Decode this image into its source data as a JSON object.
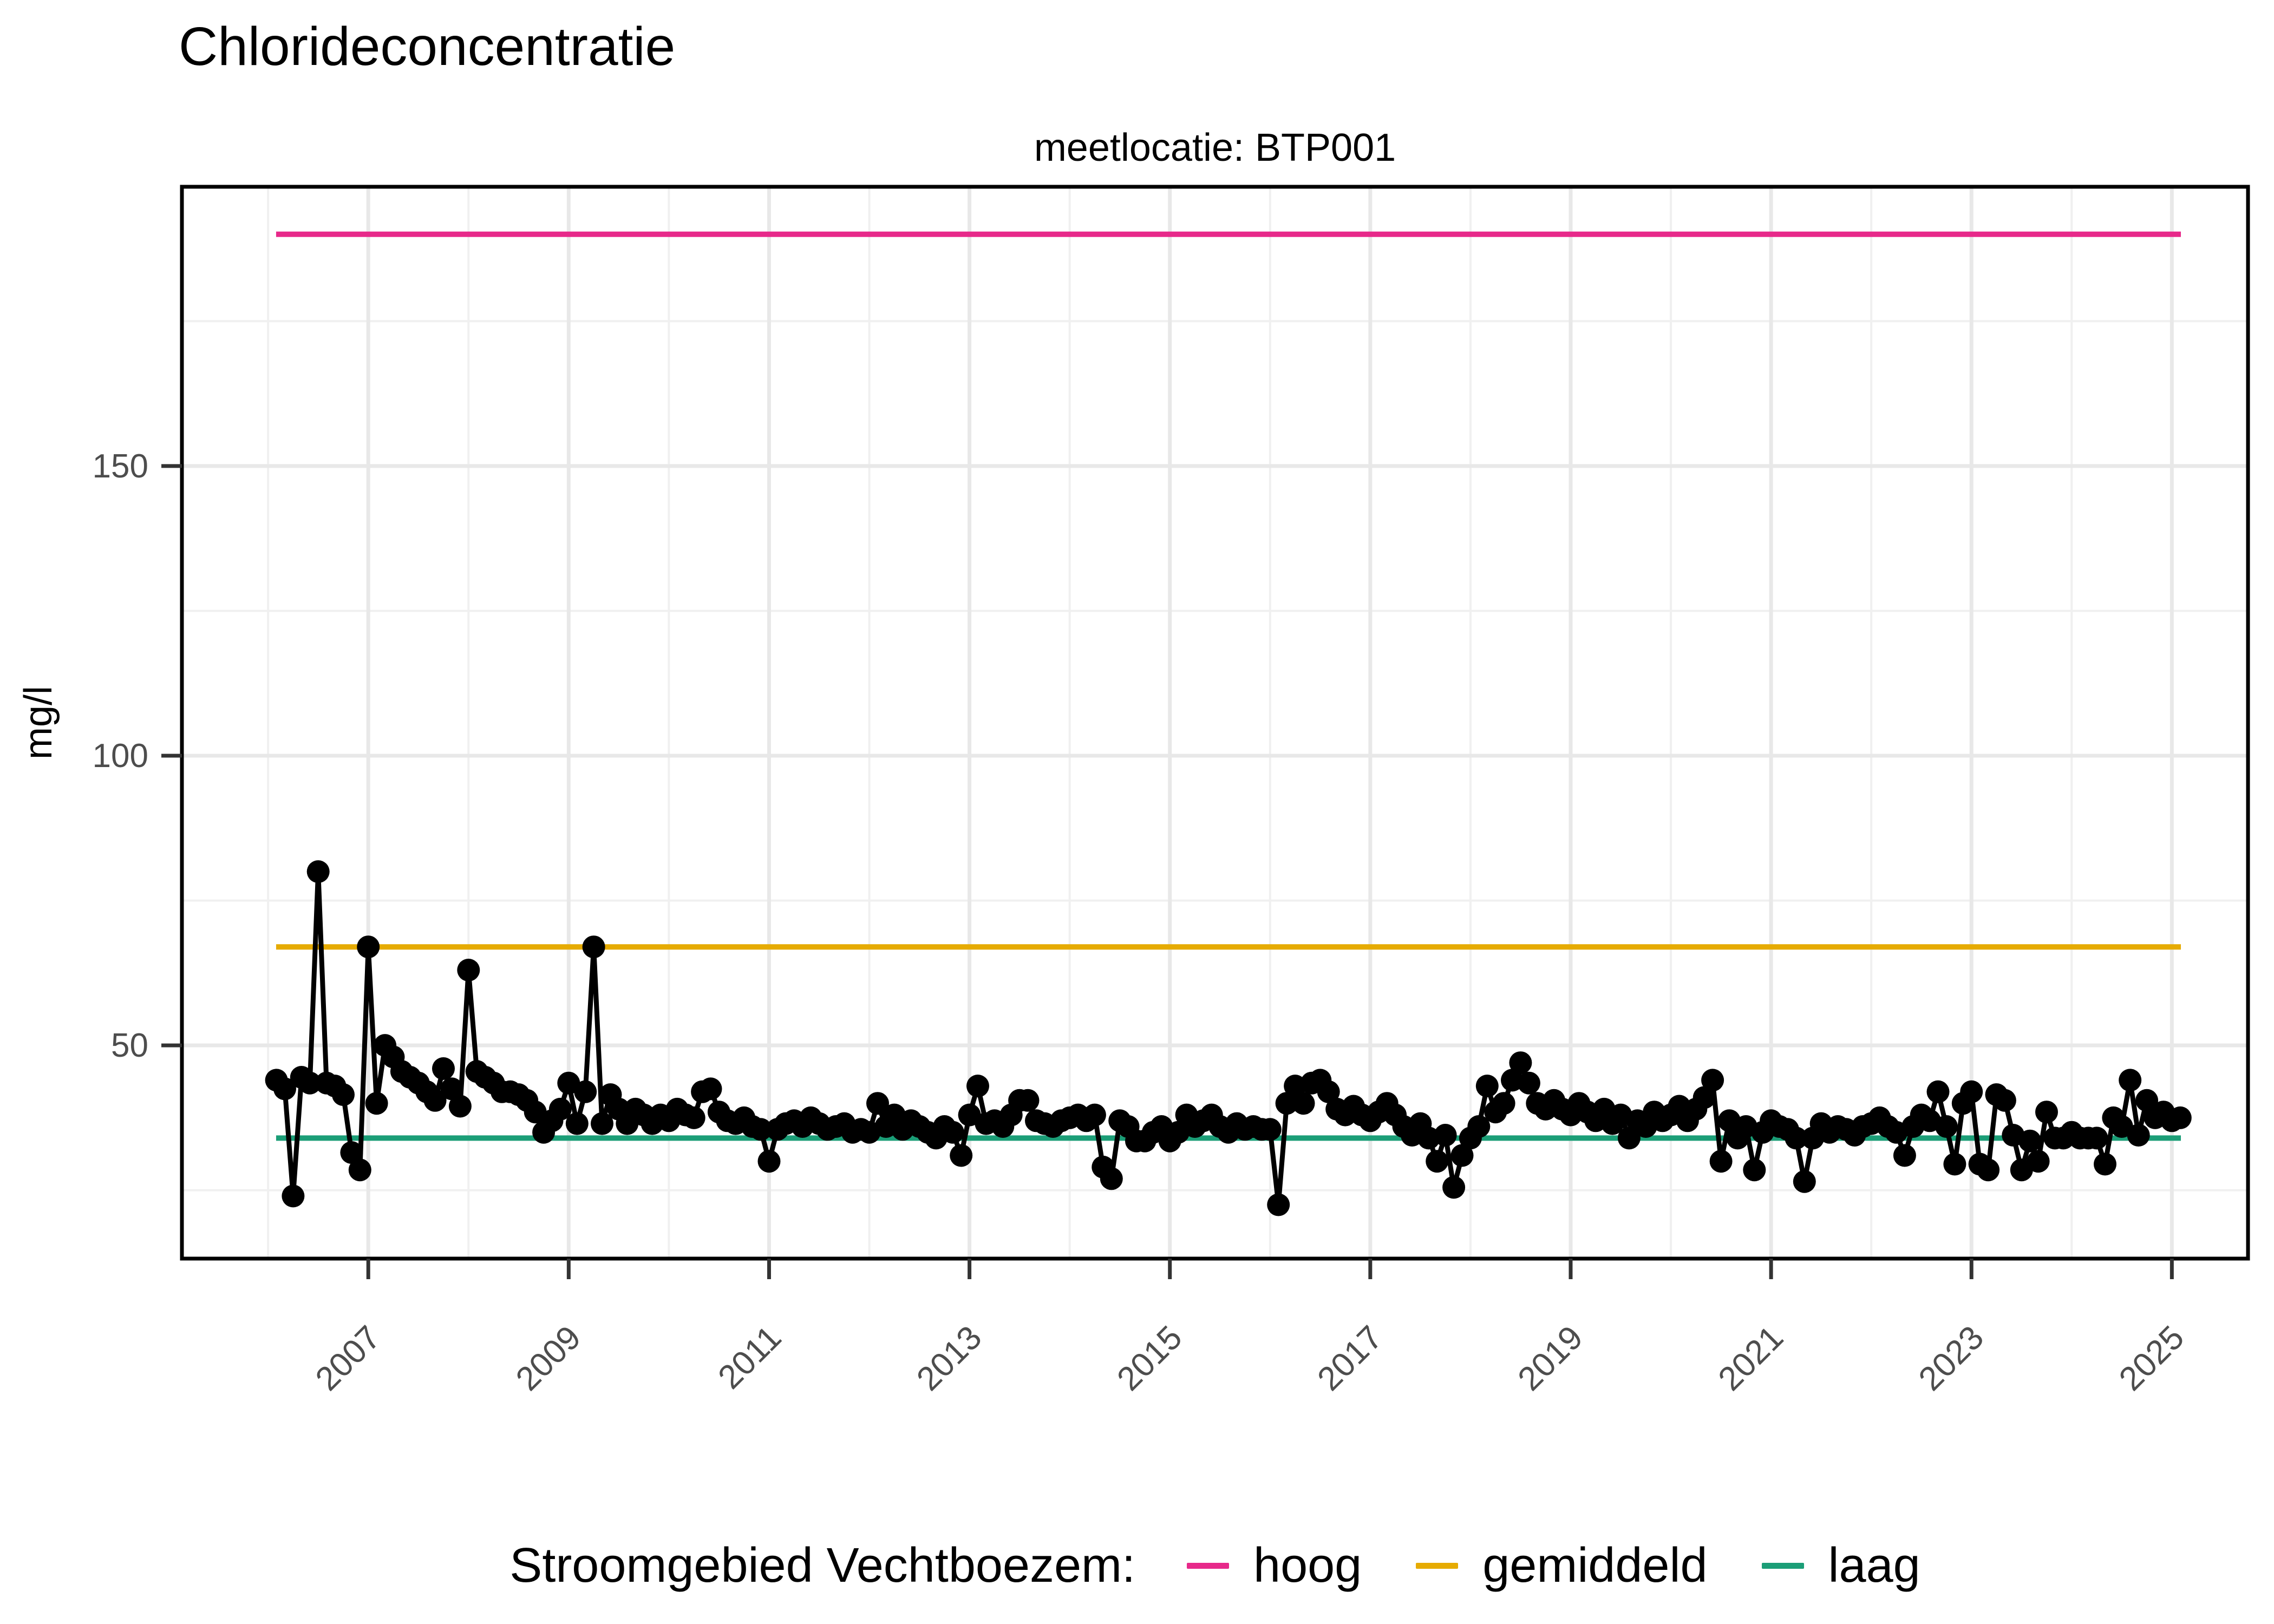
{
  "chart_data": {
    "type": "line",
    "title": "Chlorideconcentratie",
    "subtitle": "meetlocatie: BTP001",
    "ylabel": "mg/l",
    "xlabel": "",
    "x_tick_years": [
      2007,
      2009,
      2011,
      2013,
      2015,
      2017,
      2019,
      2021,
      2023,
      2025
    ],
    "x_tick_labels": [
      "2007",
      "2009",
      "2011",
      "2013",
      "2015",
      "2017",
      "2019",
      "2021",
      "2023",
      "2025"
    ],
    "x_minor_years": [
      2006,
      2008,
      2010,
      2012,
      2014,
      2016,
      2018,
      2020,
      2022,
      2024
    ],
    "y_ticks": [
      50,
      100,
      150
    ],
    "y_tick_labels": [
      "50",
      "100",
      "150"
    ],
    "y_minor": [
      25,
      75,
      125,
      175
    ],
    "xlim": [
      2005.14,
      2025.76
    ],
    "ylim": [
      13.2,
      198.2
    ],
    "grid": true,
    "legend_position": "bottom",
    "legend": {
      "title": "Stroomgebied Vechtboezem:",
      "items": [
        {
          "label": "hoog",
          "color": "#E7298A"
        },
        {
          "label": "gemiddeld",
          "color": "#E6AB02"
        },
        {
          "label": "laag",
          "color": "#1B9E77"
        }
      ]
    },
    "reference_lines": [
      {
        "name": "hoog",
        "value": 190,
        "color": "#E7298A",
        "x_start": 2006.08,
        "x_end": 2025.09
      },
      {
        "name": "gemiddeld",
        "value": 67,
        "color": "#E6AB02",
        "x_start": 2006.08,
        "x_end": 2025.09
      },
      {
        "name": "laag",
        "value": 34,
        "color": "#1B9E77",
        "x_start": 2006.08,
        "x_end": 2025.09
      }
    ],
    "series": [
      {
        "name": "chlorideconcentratie BTP001",
        "color": "#000000",
        "monthly": [
          {
            "year": 2006,
            "start_month": 2,
            "values": [
              44,
              42.5,
              24,
              44.5,
              43.5,
              80,
              43.5,
              43,
              41.5,
              31.5,
              28.5
            ]
          },
          {
            "year": 2007,
            "start_month": 1,
            "values": [
              67,
              40,
              50,
              48,
              45.5,
              44.5,
              43.5,
              42,
              40.5,
              46,
              42.5,
              39.5
            ]
          },
          {
            "year": 2008,
            "start_month": 1,
            "values": [
              63,
              45.5,
              44.5,
              43.5,
              42,
              42,
              41.5,
              40.5,
              38.5,
              35,
              37,
              39
            ]
          },
          {
            "year": 2009,
            "start_month": 1,
            "values": [
              43.5,
              36.5,
              42,
              67,
              36.5,
              41.5,
              39,
              36.5,
              39,
              38,
              36.5,
              38
            ]
          },
          {
            "year": 2010,
            "start_month": 1,
            "values": [
              37,
              39,
              38,
              37.5,
              42,
              42.5,
              38.5,
              37,
              36.5,
              37.5,
              36,
              35.5
            ]
          },
          {
            "year": 2011,
            "start_month": 1,
            "values": [
              30,
              35.5,
              36.5,
              37,
              36,
              37.5,
              36.5,
              35.5,
              36,
              36.5,
              35,
              35.5
            ]
          },
          {
            "year": 2012,
            "start_month": 1,
            "values": [
              35,
              40,
              36,
              38,
              35.5,
              37,
              36,
              35,
              34,
              36,
              35,
              31
            ]
          },
          {
            "year": 2013,
            "start_month": 1,
            "values": [
              38,
              43,
              36.5,
              37,
              36,
              38,
              40.5,
              40.5,
              37,
              36.5,
              36,
              37
            ]
          },
          {
            "year": 2014,
            "start_month": 1,
            "values": [
              37.5,
              38,
              37,
              38,
              29,
              27,
              37,
              36,
              33.5,
              33.5,
              35,
              36
            ]
          },
          {
            "year": 2015,
            "start_month": 1,
            "values": [
              33.5,
              35,
              38,
              36,
              37,
              38,
              36,
              35,
              36.5,
              35.5,
              36,
              35.5
            ]
          },
          {
            "year": 2016,
            "start_month": 1,
            "values": [
              35.5,
              22.5,
              40,
              43,
              40,
              43.5,
              44,
              42,
              39,
              38,
              39.5,
              38
            ]
          },
          {
            "year": 2017,
            "start_month": 1,
            "values": [
              37,
              38.5,
              40,
              38,
              36,
              34.5,
              36.5,
              34,
              30,
              34.5,
              25.5,
              31
            ]
          },
          {
            "year": 2018,
            "start_month": 1,
            "values": [
              34,
              36,
              43,
              38.5,
              40,
              44,
              47,
              43.5,
              40,
              39,
              40.5,
              39
            ]
          },
          {
            "year": 2019,
            "start_month": 1,
            "values": [
              38,
              40,
              38.5,
              37,
              39,
              36.5,
              38,
              34,
              37,
              36,
              38.5,
              37
            ]
          },
          {
            "year": 2020,
            "start_month": 1,
            "values": [
              38,
              39.5,
              37,
              39,
              41,
              44,
              30,
              37,
              34,
              36,
              28.5,
              35
            ]
          },
          {
            "year": 2021,
            "start_month": 1,
            "values": [
              37,
              36,
              35.5,
              34,
              26.5,
              34,
              36.5,
              35,
              36,
              35.5,
              34.5,
              36
            ]
          },
          {
            "year": 2022,
            "start_month": 1,
            "values": [
              36.5,
              37.5,
              36,
              35,
              31,
              36,
              38,
              37,
              42,
              36,
              29.5,
              40
            ]
          },
          {
            "year": 2023,
            "start_month": 1,
            "values": [
              42,
              29.5,
              28.5,
              41.5,
              40.5,
              34.5,
              28.5,
              33.5,
              30,
              38.5,
              34,
              34
            ]
          },
          {
            "year": 2024,
            "start_month": 1,
            "values": [
              35,
              34,
              34,
              34,
              29.5,
              37.5,
              36,
              44,
              34.5,
              40.5,
              37.5,
              38.5
            ]
          },
          {
            "year": 2025,
            "start_month": 1,
            "values": [
              37,
              37.5
            ]
          }
        ]
      }
    ],
    "axis_text_color": "#4D4D4D",
    "panel_border_color": "#000000"
  }
}
